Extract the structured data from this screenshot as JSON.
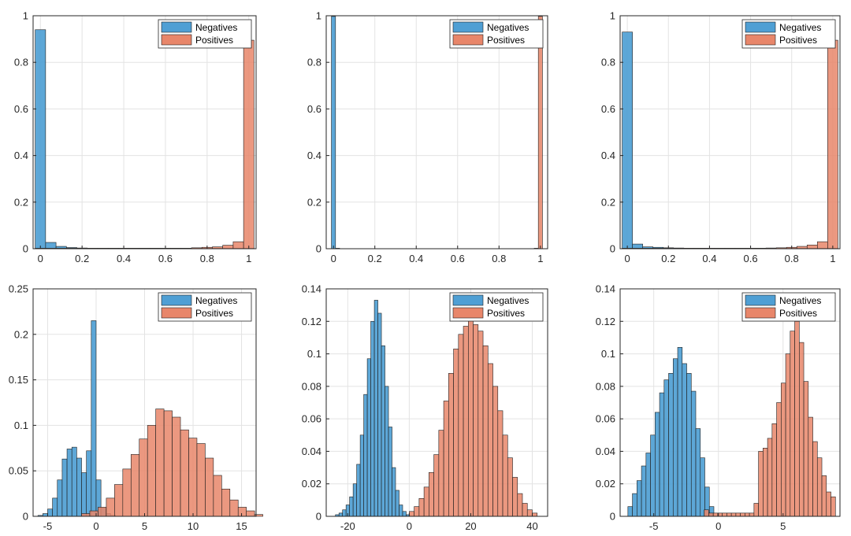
{
  "colors": {
    "negatives": "#4f9fd4",
    "positives": "#e8866a",
    "edge": "#1f1f1f",
    "grid": "#e3e3e3",
    "axis": "#262626",
    "overlap": "#b3b3b3"
  },
  "chart_data": [
    {
      "type": "bar",
      "title": "",
      "xlabel": "",
      "ylabel": "",
      "xlim": [
        -0.035,
        1.035
      ],
      "ylim": [
        0,
        1
      ],
      "xticks": [
        0,
        0.2,
        0.4,
        0.6,
        0.8,
        1
      ],
      "xtick_labels": [
        "0",
        "0.2",
        "0.4",
        "0.6",
        "0.8",
        "1"
      ],
      "yticks": [
        0,
        0.2,
        0.4,
        0.6,
        0.8,
        1
      ],
      "ytick_labels": [
        "0",
        "0.2",
        "0.4",
        "0.6",
        "0.8",
        "1"
      ],
      "grid": true,
      "legend_position": "top-right",
      "bins": {
        "start": -0.025,
        "width": 0.05
      },
      "series": [
        {
          "name": "Negatives",
          "values": [
            0.94,
            0.027,
            0.01,
            0.005,
            0.003,
            0.002,
            0.002,
            0.001,
            0.001,
            0.001,
            0.001,
            0.001,
            0.001,
            0.001,
            0.001,
            0.001,
            0.001,
            0.001,
            0.001,
            0.001,
            0.001
          ]
        },
        {
          "name": "Positives",
          "values": [
            0.001,
            0.001,
            0.001,
            0.001,
            0.001,
            0.001,
            0.001,
            0.001,
            0.001,
            0.001,
            0.001,
            0.001,
            0.001,
            0.002,
            0.002,
            0.004,
            0.006,
            0.008,
            0.015,
            0.03,
            0.895
          ]
        }
      ]
    },
    {
      "type": "bar",
      "title": "",
      "xlabel": "",
      "ylabel": "",
      "xlim": [
        -0.035,
        1.035
      ],
      "ylim": [
        0,
        1
      ],
      "xticks": [
        0,
        0.2,
        0.4,
        0.6,
        0.8,
        1
      ],
      "xtick_labels": [
        "0",
        "0.2",
        "0.4",
        "0.6",
        "0.8",
        "1"
      ],
      "yticks": [
        0,
        0.2,
        0.4,
        0.6,
        0.8,
        1
      ],
      "ytick_labels": [
        "0",
        "0.2",
        "0.4",
        "0.6",
        "0.8",
        "1"
      ],
      "grid": true,
      "legend_position": "top-right",
      "bins": {
        "start": -0.01,
        "width": 0.02
      },
      "series": [
        {
          "name": "Negatives",
          "values": [
            0.997,
            0.002
          ]
        },
        {
          "name": "Positives",
          "bins_start": 0.97,
          "values": [
            0.002,
            0.997
          ]
        }
      ]
    },
    {
      "type": "bar",
      "title": "",
      "xlabel": "",
      "ylabel": "",
      "xlim": [
        -0.035,
        1.035
      ],
      "ylim": [
        0,
        1
      ],
      "xticks": [
        0,
        0.2,
        0.4,
        0.6,
        0.8,
        1
      ],
      "xtick_labels": [
        "0",
        "0.2",
        "0.4",
        "0.6",
        "0.8",
        "1"
      ],
      "yticks": [
        0,
        0.2,
        0.4,
        0.6,
        0.8,
        1
      ],
      "ytick_labels": [
        "0",
        "0.2",
        "0.4",
        "0.6",
        "0.8",
        "1"
      ],
      "grid": true,
      "legend_position": "top-right",
      "bins": {
        "start": -0.025,
        "width": 0.05
      },
      "series": [
        {
          "name": "Negatives",
          "values": [
            0.93,
            0.02,
            0.008,
            0.006,
            0.004,
            0.003,
            0.002,
            0.002,
            0.001,
            0.001,
            0.001,
            0.001,
            0.001,
            0.001,
            0.001,
            0.001,
            0.001,
            0.001,
            0.001,
            0.001,
            0.001
          ]
        },
        {
          "name": "Positives",
          "values": [
            0.001,
            0.001,
            0.001,
            0.001,
            0.001,
            0.001,
            0.001,
            0.001,
            0.001,
            0.001,
            0.001,
            0.001,
            0.001,
            0.002,
            0.003,
            0.004,
            0.006,
            0.01,
            0.016,
            0.03,
            0.895
          ]
        }
      ]
    },
    {
      "type": "bar",
      "title": "",
      "xlabel": "",
      "ylabel": "",
      "xlim": [
        -6.5,
        16.5
      ],
      "ylim": [
        0,
        0.25
      ],
      "xticks": [
        -5,
        0,
        5,
        10,
        15
      ],
      "xtick_labels": [
        "-5",
        "0",
        "5",
        "10",
        "15"
      ],
      "yticks": [
        0,
        0.05,
        0.1,
        0.15,
        0.2,
        0.25
      ],
      "ytick_labels": [
        "0",
        "0.05",
        "0.1",
        "0.15",
        "0.2",
        "0.25"
      ],
      "grid": true,
      "legend_position": "top-right",
      "bins": {
        "start": -6,
        "width": 0.5
      },
      "series": [
        {
          "name": "Negatives",
          "values": [
            0.001,
            0.003,
            0.008,
            0.02,
            0.04,
            0.063,
            0.074,
            0.076,
            0.064,
            0.048,
            0.072,
            0.215,
            0.04,
            0.009,
            0.003,
            0.001
          ]
        },
        {
          "name": "Positives",
          "bins_start": -1.5,
          "width": 0.85,
          "values": [
            0.003,
            0.006,
            0.01,
            0.02,
            0.035,
            0.052,
            0.068,
            0.085,
            0.1,
            0.118,
            0.116,
            0.109,
            0.095,
            0.086,
            0.08,
            0.064,
            0.045,
            0.03,
            0.018,
            0.01,
            0.006,
            0.002
          ]
        }
      ]
    },
    {
      "type": "bar",
      "title": "",
      "xlabel": "",
      "ylabel": "",
      "xlim": [
        -27,
        45
      ],
      "ylim": [
        0,
        0.14
      ],
      "xticks": [
        -20,
        0,
        20,
        40
      ],
      "xtick_labels": [
        "-20",
        "0",
        "20",
        "40"
      ],
      "yticks": [
        0,
        0.02,
        0.04,
        0.06,
        0.08,
        0.1,
        0.12,
        0.14
      ],
      "ytick_labels": [
        "0",
        "0.02",
        "0.04",
        "0.06",
        "0.08",
        "0.1",
        "0.12",
        "0.14"
      ],
      "grid": true,
      "legend_position": "top-right",
      "bins": {
        "start": -24,
        "width": 1.15
      },
      "series": [
        {
          "name": "Negatives",
          "values": [
            0.001,
            0.002,
            0.004,
            0.007,
            0.012,
            0.02,
            0.032,
            0.05,
            0.075,
            0.097,
            0.12,
            0.133,
            0.125,
            0.105,
            0.08,
            0.055,
            0.03,
            0.016,
            0.007,
            0.003,
            0.001
          ]
        },
        {
          "name": "Positives",
          "bins_start": 0,
          "width": 1.6,
          "values": [
            0.003,
            0.006,
            0.011,
            0.018,
            0.027,
            0.038,
            0.053,
            0.071,
            0.088,
            0.103,
            0.112,
            0.117,
            0.122,
            0.118,
            0.114,
            0.105,
            0.094,
            0.08,
            0.065,
            0.05,
            0.036,
            0.024,
            0.014,
            0.008,
            0.004,
            0.002
          ]
        }
      ]
    },
    {
      "type": "bar",
      "title": "",
      "xlabel": "",
      "ylabel": "",
      "xlim": [
        -7.6,
        9.4
      ],
      "ylim": [
        0,
        0.14
      ],
      "xticks": [
        -5,
        0,
        5
      ],
      "xtick_labels": [
        "-5",
        "0",
        "5"
      ],
      "yticks": [
        0,
        0.02,
        0.04,
        0.06,
        0.08,
        0.1,
        0.12,
        0.14
      ],
      "ytick_labels": [
        "0",
        "0.02",
        "0.04",
        "0.06",
        "0.08",
        "0.1",
        "0.12",
        "0.14"
      ],
      "grid": true,
      "legend_position": "top-right",
      "bins": {
        "start": -7,
        "width": 0.35
      },
      "series": [
        {
          "name": "Negatives",
          "values": [
            0.006,
            0.014,
            0.022,
            0.031,
            0.039,
            0.05,
            0.064,
            0.076,
            0.084,
            0.088,
            0.097,
            0.104,
            0.094,
            0.088,
            0.077,
            0.054,
            0.036,
            0.018,
            0.006
          ]
        },
        {
          "name": "Positives",
          "bins_start": -1.1,
          "width": 0.35,
          "values": [
            0.004,
            0.002,
            0.002,
            0.002,
            0.002,
            0.002,
            0.002,
            0.002,
            0.002,
            0.002,
            0.002,
            0.008,
            0.04,
            0.042,
            0.048,
            0.057,
            0.07,
            0.082,
            0.1,
            0.114,
            0.12,
            0.107,
            0.083,
            0.061,
            0.046,
            0.036,
            0.025,
            0.015,
            0.012
          ]
        }
      ]
    }
  ]
}
